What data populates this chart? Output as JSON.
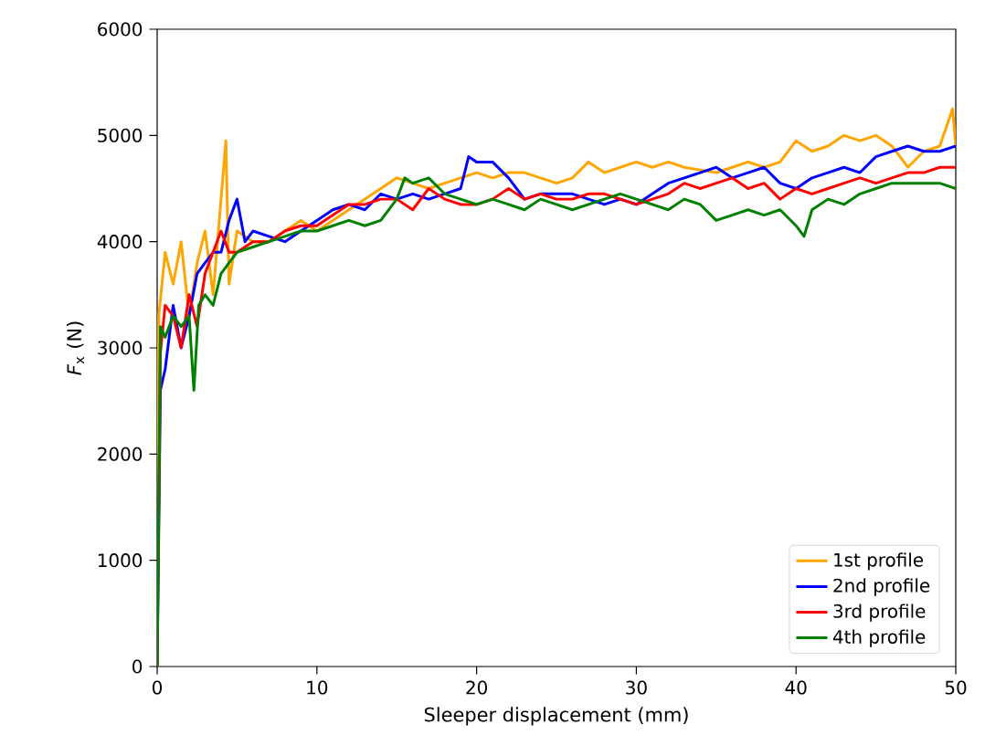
{
  "chart_data": {
    "type": "line",
    "xlabel": "Sleeper displacement (mm)",
    "ylabel": "*F*$_{x}$ (N)",
    "xlim": [
      0,
      50
    ],
    "ylim": [
      0,
      6000
    ],
    "xticks": [
      0,
      10,
      20,
      30,
      40,
      50
    ],
    "yticks": [
      0,
      1000,
      2000,
      3000,
      4000,
      5000,
      6000
    ],
    "grid": false,
    "legend": "bottom right",
    "marker": "none",
    "line_style": "solid",
    "series": [
      {
        "name": "1st profile",
        "color": "#ffa500",
        "x": [
          0,
          0.1,
          0.5,
          1,
          1.5,
          2,
          2.5,
          3,
          3.5,
          4,
          4.3,
          4.5,
          5,
          6,
          7,
          8,
          9,
          10,
          11,
          12,
          13,
          14,
          15,
          16,
          17,
          18,
          19,
          20,
          21,
          22,
          23,
          24,
          25,
          26,
          27,
          28,
          29,
          30,
          31,
          32,
          33,
          35,
          36,
          37,
          38,
          39,
          40,
          41,
          42,
          43,
          44,
          45,
          46,
          47,
          48,
          49,
          49.8,
          50
        ],
        "values": [
          0,
          3300,
          3900,
          3600,
          4000,
          3300,
          3800,
          4100,
          3500,
          4400,
          4950,
          3600,
          4100,
          4000,
          4000,
          4100,
          4200,
          4100,
          4200,
          4300,
          4400,
          4500,
          4600,
          4550,
          4500,
          4550,
          4600,
          4650,
          4600,
          4650,
          4650,
          4600,
          4550,
          4600,
          4750,
          4650,
          4700,
          4750,
          4700,
          4750,
          4700,
          4650,
          4700,
          4750,
          4700,
          4750,
          4950,
          4850,
          4900,
          5000,
          4950,
          5000,
          4900,
          4700,
          4850,
          4900,
          5250,
          4900
        ]
      },
      {
        "name": "2nd profile",
        "color": "#0000ff",
        "x": [
          0,
          0.2,
          0.5,
          1,
          1.5,
          2,
          2.5,
          3,
          3.5,
          4,
          4.5,
          5,
          5.5,
          6,
          7,
          8,
          9,
          10,
          11,
          12,
          13,
          14,
          15,
          16,
          17,
          18,
          19,
          19.5,
          20,
          21,
          22,
          23,
          24,
          25,
          26,
          27,
          28,
          29,
          30,
          31,
          32,
          33,
          34,
          35,
          36,
          37,
          38,
          39,
          40,
          41,
          42,
          43,
          44,
          45,
          46,
          47,
          48,
          49,
          50
        ],
        "values": [
          0,
          2600,
          2800,
          3400,
          3000,
          3300,
          3700,
          3800,
          3900,
          3900,
          4200,
          4400,
          4000,
          4100,
          4050,
          4000,
          4100,
          4200,
          4300,
          4350,
          4300,
          4450,
          4400,
          4450,
          4400,
          4450,
          4500,
          4800,
          4750,
          4750,
          4600,
          4400,
          4450,
          4450,
          4450,
          4400,
          4350,
          4400,
          4350,
          4450,
          4550,
          4600,
          4650,
          4700,
          4600,
          4650,
          4700,
          4550,
          4500,
          4600,
          4650,
          4700,
          4650,
          4800,
          4850,
          4900,
          4850,
          4850,
          4900
        ]
      },
      {
        "name": "3rd profile",
        "color": "#ff0000",
        "x": [
          0,
          0.2,
          0.5,
          1,
          1.5,
          2,
          2.5,
          3,
          3.5,
          4,
          4.5,
          5,
          6,
          7,
          8,
          9,
          10,
          11,
          12,
          13,
          14,
          15,
          16,
          17,
          18,
          19,
          20,
          21,
          22,
          23,
          24,
          25,
          26,
          27,
          28,
          29,
          30,
          31,
          32,
          33,
          34,
          35,
          36,
          37,
          38,
          39,
          40,
          41,
          42,
          43,
          44,
          45,
          46,
          47,
          48,
          49,
          50
        ],
        "values": [
          0,
          2950,
          3400,
          3300,
          3000,
          3500,
          3200,
          3700,
          3900,
          4100,
          3900,
          3900,
          4000,
          4000,
          4100,
          4150,
          4150,
          4250,
          4350,
          4350,
          4400,
          4400,
          4300,
          4500,
          4400,
          4350,
          4350,
          4400,
          4500,
          4400,
          4450,
          4400,
          4400,
          4450,
          4450,
          4400,
          4350,
          4400,
          4450,
          4550,
          4500,
          4550,
          4600,
          4500,
          4550,
          4400,
          4500,
          4450,
          4500,
          4550,
          4600,
          4550,
          4600,
          4650,
          4650,
          4700,
          4700
        ]
      },
      {
        "name": "4th profile",
        "color": "#008000",
        "x": [
          0,
          0.2,
          0.5,
          1,
          1.5,
          2,
          2.3,
          2.6,
          3,
          3.5,
          4,
          4.5,
          5,
          6,
          7,
          8,
          9,
          10,
          11,
          12,
          13,
          14,
          15,
          15.5,
          16,
          17,
          18,
          19,
          20,
          21,
          22,
          23,
          24,
          25,
          26,
          27,
          28,
          29,
          30,
          31,
          32,
          33,
          34,
          35,
          36,
          37,
          38,
          39,
          40,
          40.5,
          41,
          42,
          43,
          44,
          45,
          46,
          47,
          48,
          49,
          50
        ],
        "values": [
          0,
          3200,
          3100,
          3300,
          3200,
          3300,
          2600,
          3400,
          3500,
          3400,
          3700,
          3800,
          3900,
          3950,
          4000,
          4050,
          4100,
          4100,
          4150,
          4200,
          4150,
          4200,
          4400,
          4600,
          4550,
          4600,
          4450,
          4400,
          4350,
          4400,
          4350,
          4300,
          4400,
          4350,
          4300,
          4350,
          4400,
          4450,
          4400,
          4350,
          4300,
          4400,
          4350,
          4200,
          4250,
          4300,
          4250,
          4300,
          4150,
          4050,
          4300,
          4400,
          4350,
          4450,
          4500,
          4550,
          4550,
          4550,
          4550,
          4500
        ]
      }
    ]
  }
}
